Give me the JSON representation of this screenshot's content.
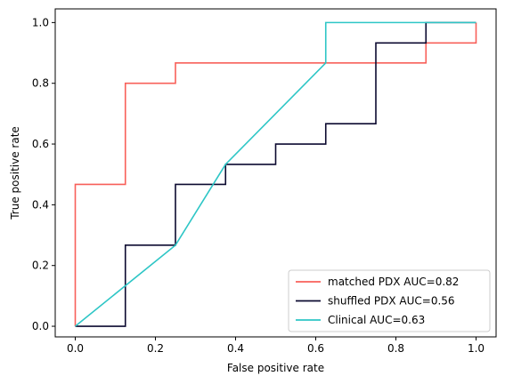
{
  "chart_data": {
    "type": "line",
    "xlabel": "False positive rate",
    "ylabel": "True positive rate",
    "xlim": [
      -0.05,
      1.05
    ],
    "ylim": [
      -0.035,
      1.045
    ],
    "xticks": [
      "0.0",
      "0.2",
      "0.4",
      "0.6",
      "0.8",
      "1.0"
    ],
    "yticks": [
      "0.0",
      "0.2",
      "0.4",
      "0.6",
      "0.8",
      "1.0"
    ],
    "grid": false,
    "legend_position": "bottom-right",
    "series": [
      {
        "name": "matched PDX AUC=0.82",
        "color": "#f8605a",
        "x": [
          0,
          0,
          0.125,
          0.125,
          0.25,
          0.25,
          0.875,
          0.875,
          1.0,
          1.0
        ],
        "y": [
          0,
          0.467,
          0.467,
          0.8,
          0.8,
          0.867,
          0.867,
          0.933,
          0.933,
          1.0
        ]
      },
      {
        "name": "shuffled PDX AUC=0.56",
        "color": "#0c0a30",
        "x": [
          0,
          0.125,
          0.125,
          0.25,
          0.25,
          0.375,
          0.375,
          0.5,
          0.5,
          0.625,
          0.625,
          0.75,
          0.75,
          0.875,
          0.875,
          1.0
        ],
        "y": [
          0,
          0,
          0.267,
          0.267,
          0.467,
          0.467,
          0.533,
          0.533,
          0.6,
          0.6,
          0.667,
          0.667,
          0.933,
          0.933,
          1.0,
          1.0
        ]
      },
      {
        "name": "Clinical AUC=0.63",
        "color": "#2ec6c6",
        "x": [
          0,
          0.25,
          0.375,
          0.625,
          0.625,
          1.0
        ],
        "y": [
          0,
          0.267,
          0.533,
          0.867,
          1.0,
          1.0
        ]
      }
    ]
  }
}
